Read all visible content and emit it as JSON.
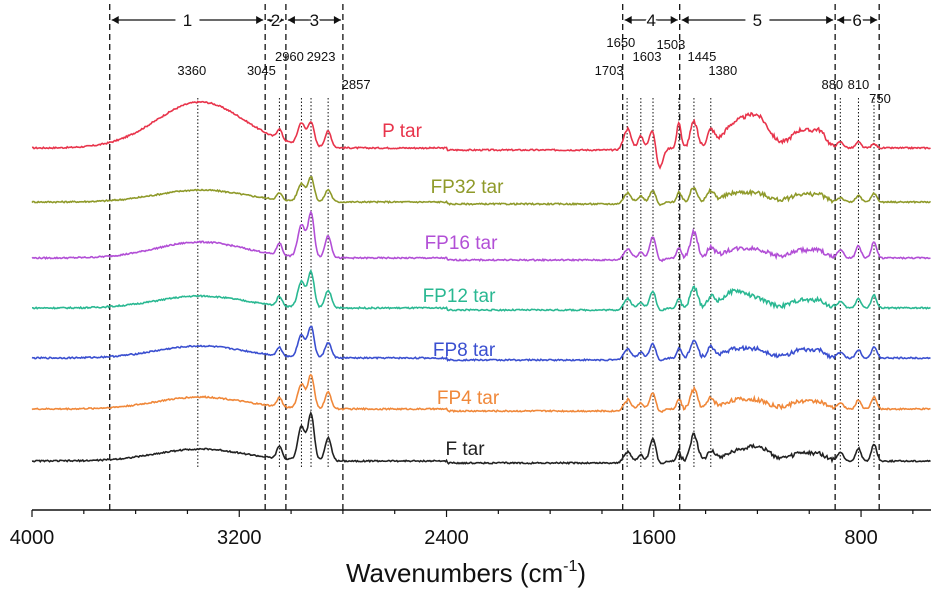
{
  "chart_data": {
    "type": "line",
    "xlabel_text": "Wavenumbers (cm",
    "xlabel_sup": "-1",
    "xlabel_close": ")",
    "xlim": [
      4000,
      530
    ],
    "x_ticks": [
      "4000",
      "3200",
      "2400",
      "1600",
      "800"
    ],
    "x_tick_values": [
      4000,
      3200,
      2400,
      1600,
      800
    ],
    "regions": [
      {
        "label": "1",
        "from": 3700,
        "to": 3100
      },
      {
        "label": "2",
        "from": 3100,
        "to": 3020
      },
      {
        "label": "3",
        "from": 3020,
        "to": 2800
      },
      {
        "label": "4",
        "from": 1720,
        "to": 1500
      },
      {
        "label": "5",
        "from": 1500,
        "to": 900
      },
      {
        "label": "6",
        "from": 900,
        "to": 730
      }
    ],
    "peaks": [
      {
        "label": "3360",
        "x": 3360
      },
      {
        "label": "3045",
        "x": 3045
      },
      {
        "label": "2960",
        "x": 2960
      },
      {
        "label": "2923",
        "x": 2923
      },
      {
        "label": "2857",
        "x": 2857
      },
      {
        "label": "1703",
        "x": 1703
      },
      {
        "label": "1650",
        "x": 1650
      },
      {
        "label": "1603",
        "x": 1603
      },
      {
        "label": "1503",
        "x": 1503
      },
      {
        "label": "1445",
        "x": 1445
      },
      {
        "label": "1380",
        "x": 1380
      },
      {
        "label": "880",
        "x": 880
      },
      {
        "label": "810",
        "x": 810
      },
      {
        "label": "750",
        "x": 750
      }
    ],
    "series": [
      {
        "name": "P tar",
        "color": "#e8344b"
      },
      {
        "name": "FP32 tar",
        "color": "#8f9a2a"
      },
      {
        "name": "FP16 tar",
        "color": "#b24fd6"
      },
      {
        "name": "FP12 tar",
        "color": "#2ab892"
      },
      {
        "name": "FP8 tar",
        "color": "#3a4fd0"
      },
      {
        "name": "FP4 tar",
        "color": "#f0883a"
      },
      {
        "name": "F tar",
        "color": "#222222"
      }
    ]
  }
}
